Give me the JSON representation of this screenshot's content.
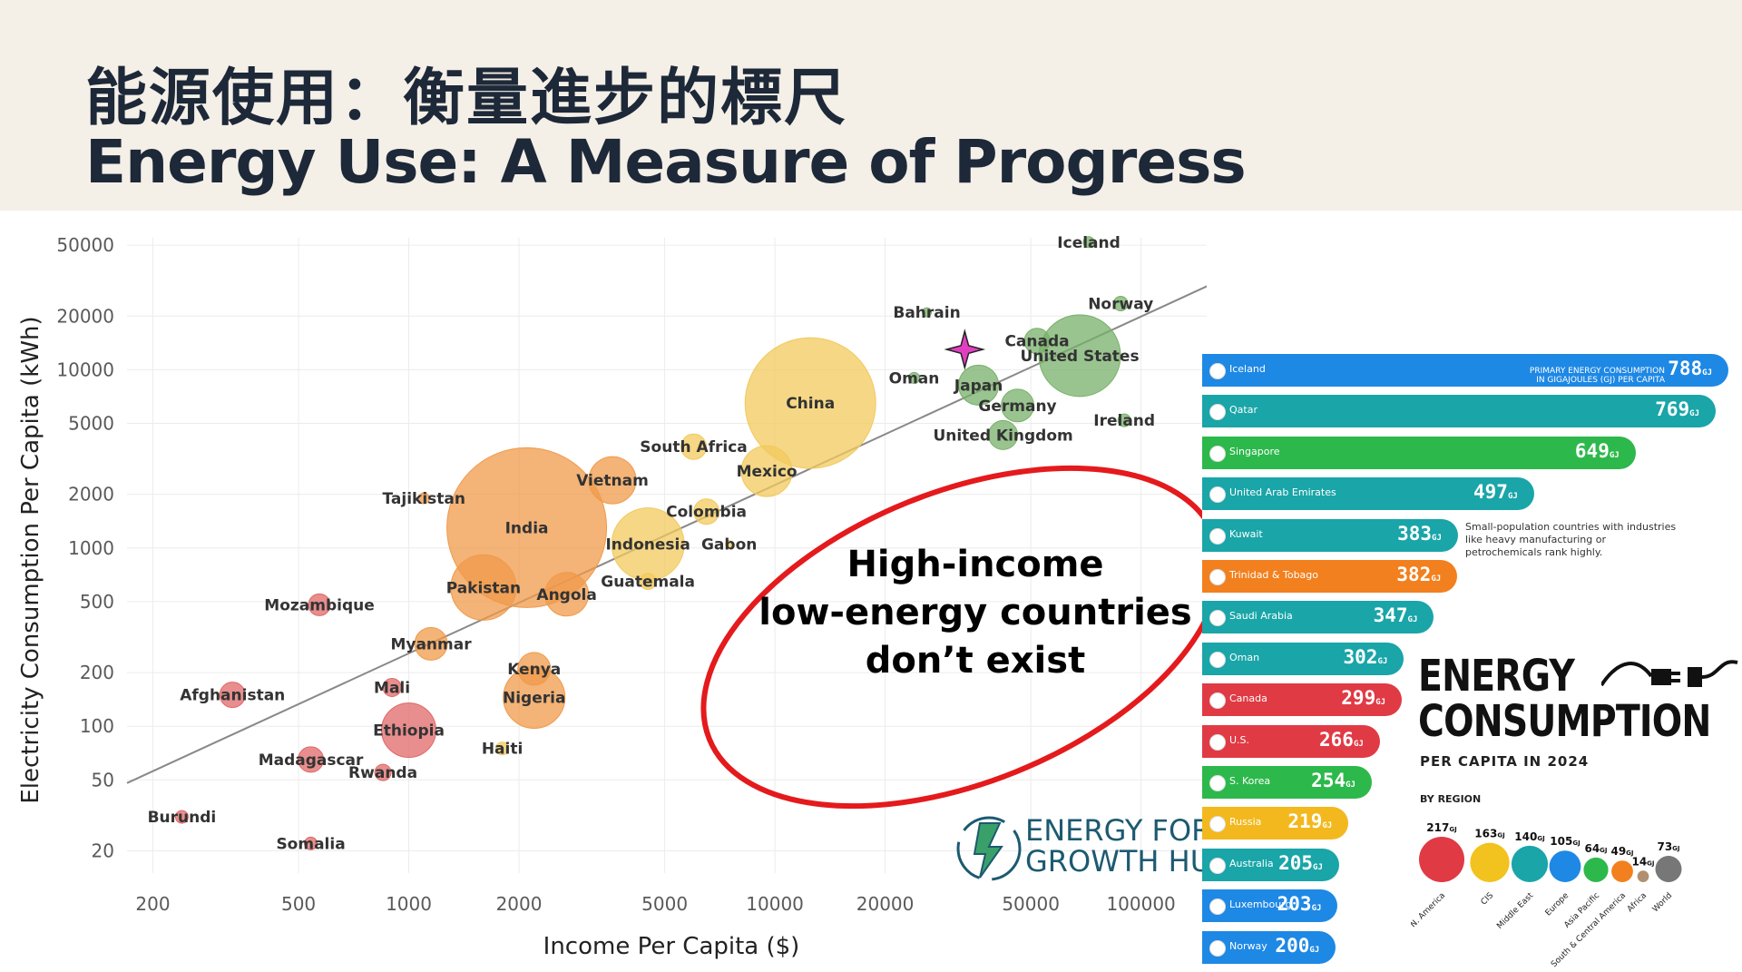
{
  "header": {
    "title_zh": "能源使用：衡量進步的標尺",
    "title_en": "Energy Use: A Measure of Progress"
  },
  "annotation": {
    "lines": [
      "High-income",
      "low-energy countries",
      "don’t exist"
    ],
    "ellipse_color": "#e41a1c"
  },
  "logo": {
    "line1": "ENERGY FOR",
    "line2": "GROWTH HUB"
  },
  "chart_data": [
    {
      "type": "scatter",
      "xlabel": "Income Per Capita ($)",
      "ylabel": "Electricity Consumption Per Capita (kWh)",
      "x_scale": "log",
      "y_scale": "log",
      "xlim": [
        170,
        160000
      ],
      "ylim": [
        15,
        55000
      ],
      "x_ticks": [
        200,
        500,
        1000,
        2000,
        5000,
        10000,
        20000,
        50000,
        100000
      ],
      "y_ticks": [
        20,
        50,
        100,
        200,
        500,
        1000,
        2000,
        5000,
        10000,
        20000,
        50000
      ],
      "grid": true,
      "trendline": {
        "x": [
          170,
          160000
        ],
        "y": [
          48,
          31000
        ],
        "color": "#888888"
      },
      "highlight_marker": {
        "x": 33000,
        "y": 13000,
        "color": "#e040c0"
      },
      "region_colors": {
        "africa": "#e06868",
        "south_asia": "#f09a4a",
        "east_asia": "#f2c95c",
        "high_income": "#78b06a"
      },
      "points": [
        {
          "x": 72000,
          "y": 52000,
          "label": "Iceland",
          "size": 6,
          "region": "high_income"
        },
        {
          "x": 88000,
          "y": 23500,
          "label": "Norway",
          "size": 8,
          "region": "high_income"
        },
        {
          "x": 26000,
          "y": 21000,
          "label": "Bahrain",
          "size": 5,
          "region": "high_income"
        },
        {
          "x": 52000,
          "y": 14500,
          "label": "Canada",
          "size": 14,
          "region": "high_income"
        },
        {
          "x": 68000,
          "y": 12000,
          "label": "United States",
          "size": 45,
          "region": "high_income"
        },
        {
          "x": 24000,
          "y": 9000,
          "label": "Oman",
          "size": 6,
          "region": "high_income"
        },
        {
          "x": 36000,
          "y": 8200,
          "label": "Japan",
          "size": 22,
          "region": "high_income"
        },
        {
          "x": 90000,
          "y": 5200,
          "label": "Ireland",
          "size": 7,
          "region": "high_income"
        },
        {
          "x": 46000,
          "y": 6300,
          "label": "Germany",
          "size": 18,
          "region": "high_income"
        },
        {
          "x": 42000,
          "y": 4300,
          "label": "United Kingdom",
          "size": 16,
          "region": "high_income"
        },
        {
          "x": 12500,
          "y": 6500,
          "label": "China",
          "size": 72,
          "region": "east_asia"
        },
        {
          "x": 6000,
          "y": 3700,
          "label": "South Africa",
          "size": 14,
          "region": "east_asia"
        },
        {
          "x": 9500,
          "y": 2700,
          "label": "Mexico",
          "size": 28,
          "region": "east_asia"
        },
        {
          "x": 3600,
          "y": 2400,
          "label": "Vietnam",
          "size": 26,
          "region": "south_asia"
        },
        {
          "x": 6500,
          "y": 1600,
          "label": "Colombia",
          "size": 14,
          "region": "east_asia"
        },
        {
          "x": 4500,
          "y": 1050,
          "label": "Indonesia",
          "size": 40,
          "region": "east_asia"
        },
        {
          "x": 7500,
          "y": 1050,
          "label": "Gabon",
          "size": 4,
          "region": "east_asia"
        },
        {
          "x": 4500,
          "y": 650,
          "label": "Guatemala",
          "size": 9,
          "region": "east_asia"
        },
        {
          "x": 2100,
          "y": 1300,
          "label": "India",
          "size": 88,
          "region": "south_asia"
        },
        {
          "x": 1100,
          "y": 1900,
          "label": "Tajikistan",
          "size": 6,
          "region": "south_asia"
        },
        {
          "x": 1600,
          "y": 600,
          "label": "Pakistan",
          "size": 36,
          "region": "south_asia"
        },
        {
          "x": 2700,
          "y": 550,
          "label": "Angola",
          "size": 24,
          "region": "south_asia"
        },
        {
          "x": 570,
          "y": 480,
          "label": "Mozambique",
          "size": 12,
          "region": "africa"
        },
        {
          "x": 1150,
          "y": 290,
          "label": "Myanmar",
          "size": 18,
          "region": "south_asia"
        },
        {
          "x": 2200,
          "y": 210,
          "label": "Kenya",
          "size": 18,
          "region": "south_asia"
        },
        {
          "x": 2200,
          "y": 145,
          "label": "Nigeria",
          "size": 34,
          "region": "south_asia"
        },
        {
          "x": 900,
          "y": 165,
          "label": "Mali",
          "size": 10,
          "region": "africa"
        },
        {
          "x": 330,
          "y": 150,
          "label": "Afghanistan",
          "size": 14,
          "region": "africa"
        },
        {
          "x": 1000,
          "y": 95,
          "label": "Ethiopia",
          "size": 30,
          "region": "africa"
        },
        {
          "x": 1800,
          "y": 75,
          "label": "Haiti",
          "size": 7,
          "region": "east_asia"
        },
        {
          "x": 540,
          "y": 65,
          "label": "Madagascar",
          "size": 14,
          "region": "africa"
        },
        {
          "x": 850,
          "y": 55,
          "label": "Rwanda",
          "size": 9,
          "region": "africa"
        },
        {
          "x": 240,
          "y": 31,
          "label": "Burundi",
          "size": 7,
          "region": "africa"
        },
        {
          "x": 540,
          "y": 22,
          "label": "Somalia",
          "size": 7,
          "region": "africa"
        }
      ]
    },
    {
      "type": "bar",
      "orientation": "horizontal",
      "title": "ENERGY CONSUMPTION",
      "subtitle": "PER CAPITA IN 2024",
      "header_line1": "PRIMARY ENERGY CONSUMPTION",
      "header_line2": "IN GIGAJOULES (GJ) PER CAPITA",
      "unit": "GJ",
      "note": "Small-population countries with industries like heavy manufacturing or petrochemicals rank highly.",
      "categories": [
        "Iceland",
        "Qatar",
        "Singapore",
        "United Arab Emirates",
        "Kuwait",
        "Trinidad & Tobago",
        "Saudi Arabia",
        "Oman",
        "Canada",
        "U.S.",
        "S. Korea",
        "Russia",
        "Australia",
        "Luxembourg",
        "Norway"
      ],
      "values": [
        788,
        769,
        649,
        497,
        383,
        382,
        347,
        302,
        299,
        266,
        254,
        219,
        205,
        203,
        200
      ],
      "colors": [
        "#1e88e5",
        "#1aa5a8",
        "#2db84c",
        "#1aa5a8",
        "#1aa5a8",
        "#f2801e",
        "#1aa5a8",
        "#1aa5a8",
        "#e03a45",
        "#e03a45",
        "#2db84c",
        "#f2b81e",
        "#1aa5a8",
        "#1e88e5",
        "#1e88e5"
      ]
    },
    {
      "type": "bubble",
      "title": "BY REGION",
      "unit": "GJ",
      "categories": [
        "N. America",
        "CIS",
        "Middle East",
        "Europe",
        "Asia Pacific",
        "South & Central America",
        "Africa",
        "World"
      ],
      "values": [
        217,
        163,
        140,
        105,
        64,
        49,
        14,
        73
      ],
      "colors": [
        "#e03a45",
        "#f2c21e",
        "#1aa5a8",
        "#1e88e5",
        "#2db84c",
        "#f2801e",
        "#b09070",
        "#777777"
      ]
    }
  ]
}
